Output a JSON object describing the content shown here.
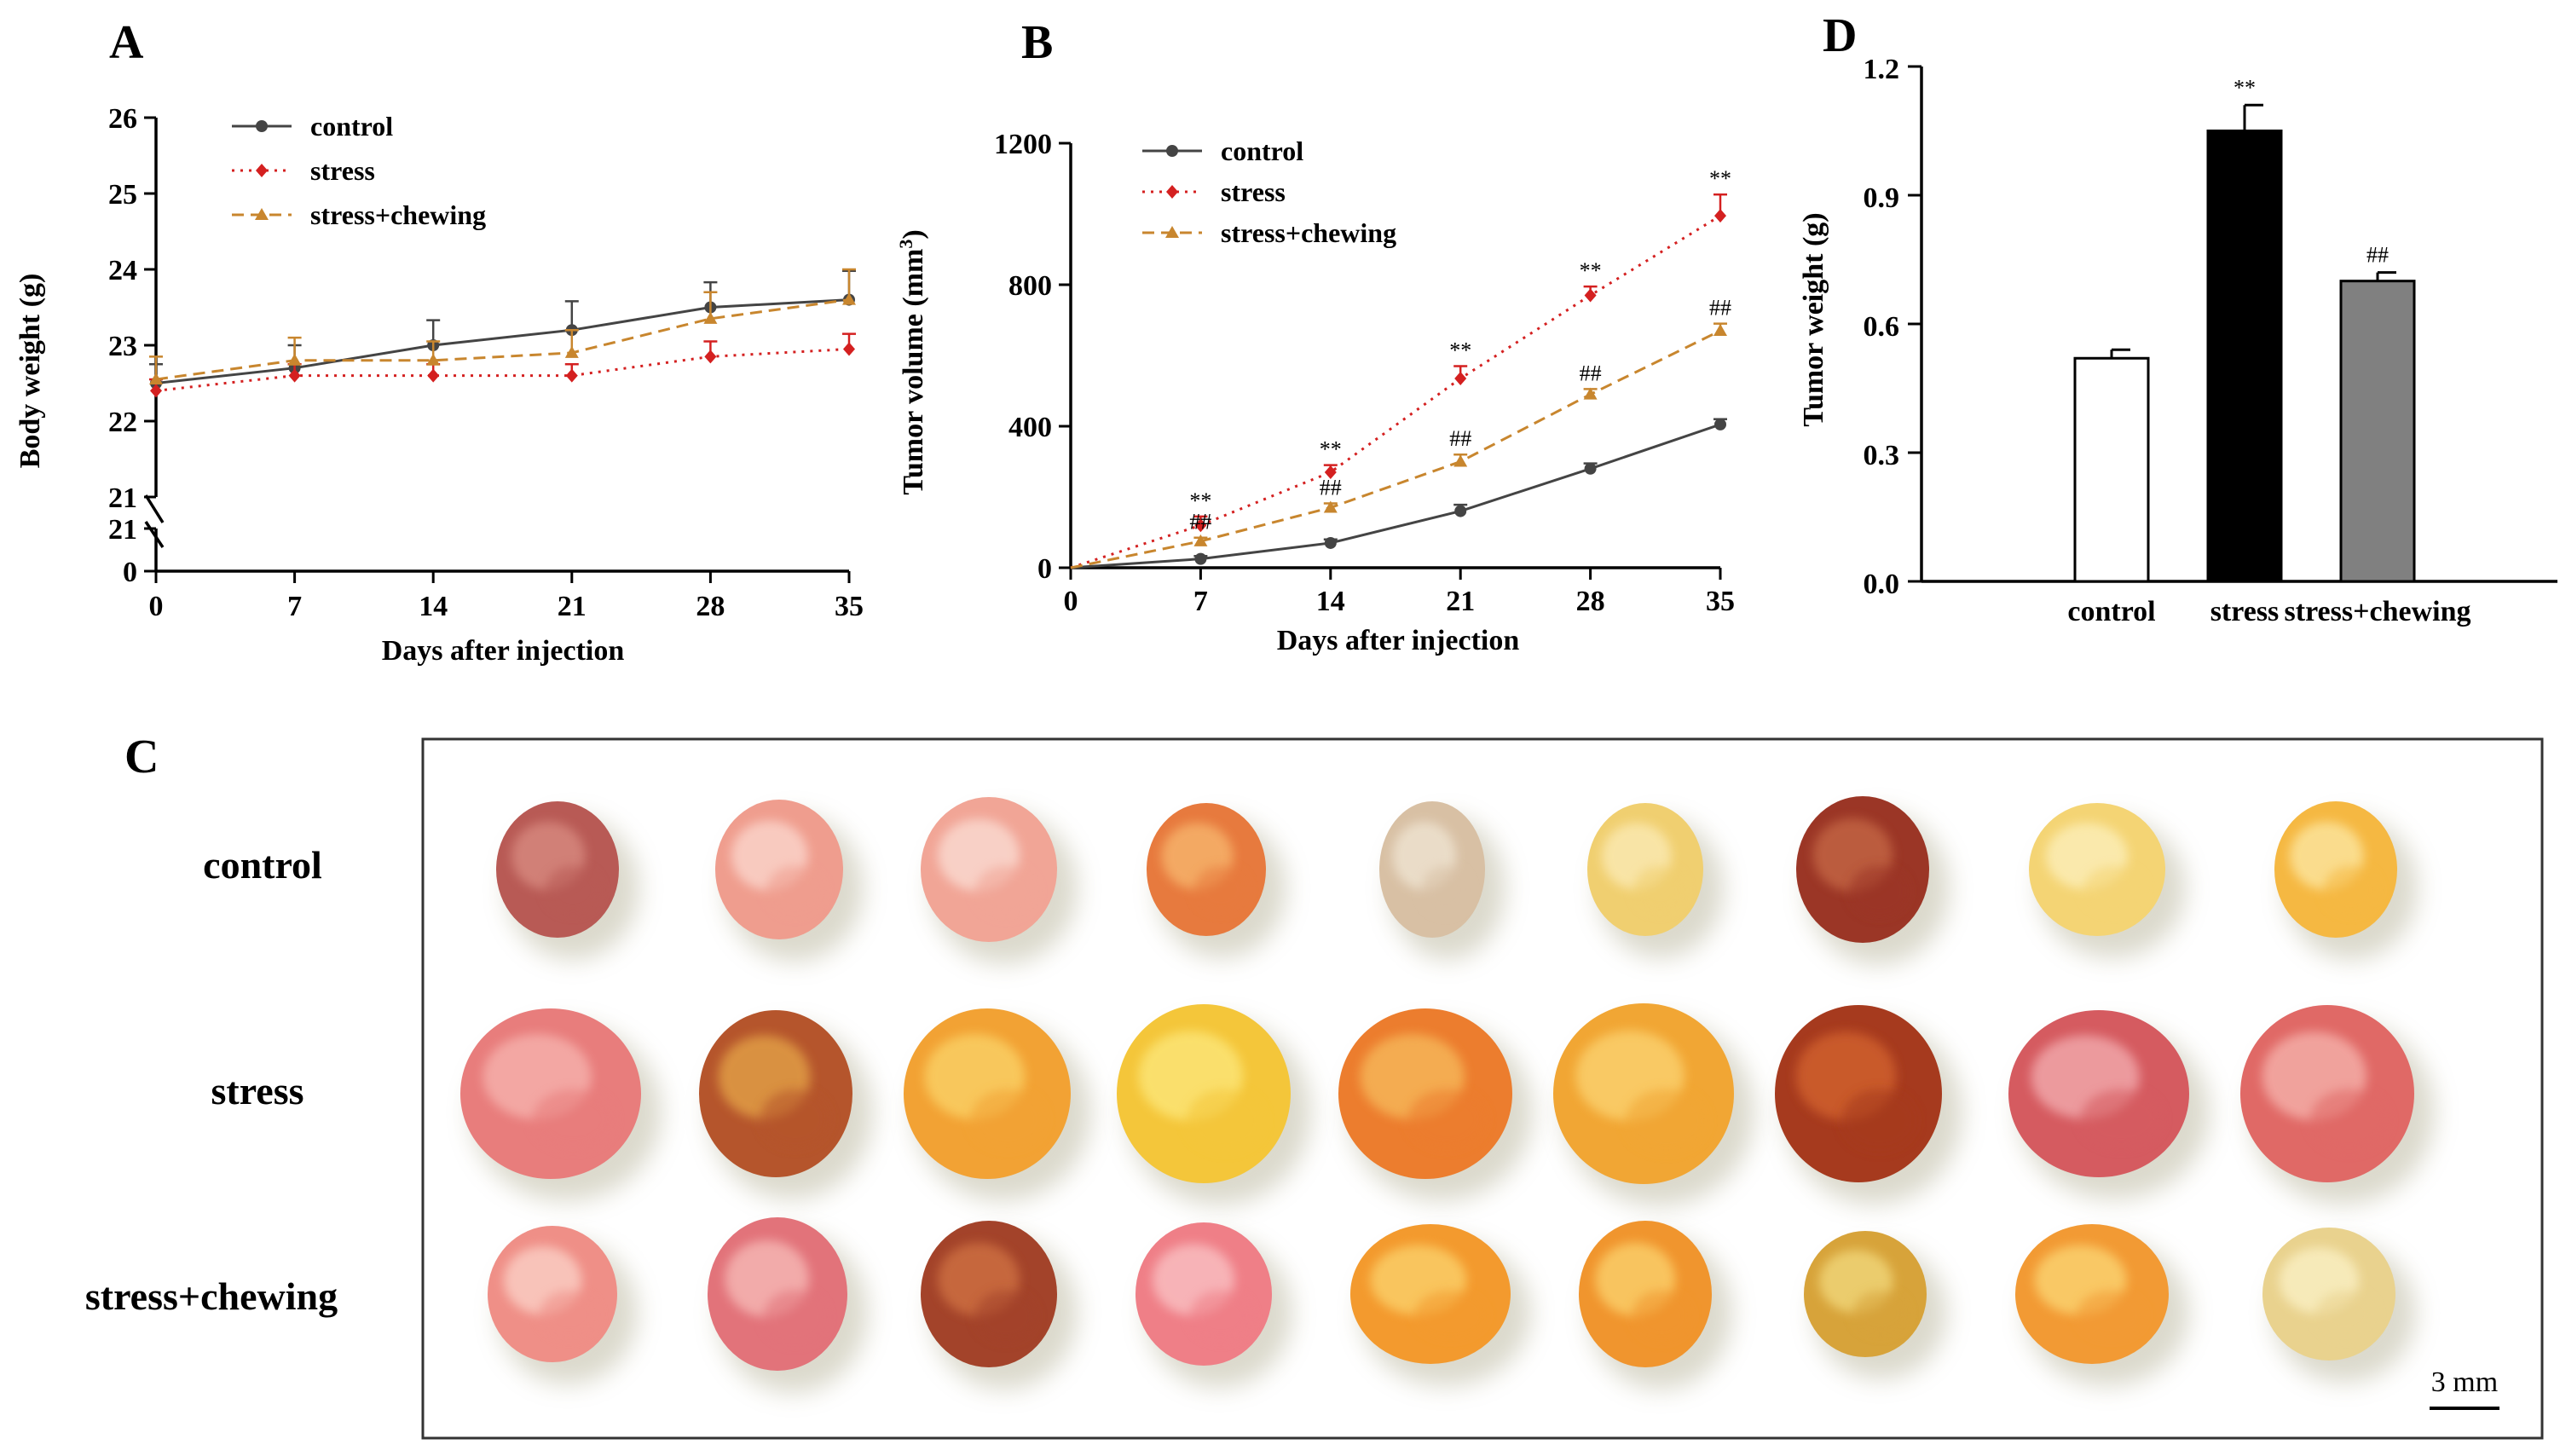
{
  "panels": {
    "A": "A",
    "B": "B",
    "C": "C",
    "D": "D"
  },
  "colors": {
    "control": "#444444",
    "stress": "#d42020",
    "stress_chewing": "#c8862e",
    "bar_control": "#ffffff",
    "bar_stress": "#000000",
    "bar_stress_chewing": "#808080"
  },
  "chart_data": [
    {
      "panel": "A",
      "type": "line",
      "title": "",
      "xlabel": "Days after injection",
      "ylabel": "Body weight (g)",
      "x": [
        0,
        7,
        14,
        21,
        28,
        35
      ],
      "xticks": [
        "0",
        "7",
        "14",
        "21",
        "28",
        "35"
      ],
      "yticks": [
        "21",
        "22",
        "23",
        "24",
        "25",
        "26"
      ],
      "ybreak_ticks": [
        "21",
        "0"
      ],
      "ylim": [
        21,
        26
      ],
      "broken_axis": true,
      "legend_position": "top-left",
      "series": [
        {
          "name": "control",
          "values": [
            22.5,
            22.7,
            23.0,
            23.2,
            23.5,
            23.6
          ],
          "errors": [
            0.25,
            0.3,
            0.33,
            0.38,
            0.33,
            0.38
          ]
        },
        {
          "name": "stress",
          "values": [
            22.4,
            22.6,
            22.6,
            22.6,
            22.85,
            22.95
          ],
          "errors": [
            0.15,
            0.15,
            0.15,
            0.15,
            0.2,
            0.2
          ]
        },
        {
          "name": "stress+chewing",
          "values": [
            22.55,
            22.8,
            22.8,
            22.9,
            23.35,
            23.6
          ],
          "errors": [
            0.3,
            0.3,
            0.25,
            0.3,
            0.35,
            0.4
          ]
        }
      ]
    },
    {
      "panel": "B",
      "type": "line",
      "title": "",
      "xlabel": "Days after injection",
      "ylabel": "Tumor volume (mm3)",
      "ylabel_main": "Tumor volume (mm",
      "ylabel_sup": "3",
      "ylabel_end": ")",
      "x": [
        0,
        7,
        14,
        21,
        28,
        35
      ],
      "xticks": [
        "0",
        "7",
        "14",
        "21",
        "28",
        "35"
      ],
      "yticks": [
        "0",
        "400",
        "800",
        "1200"
      ],
      "ylim": [
        0,
        1200
      ],
      "legend_position": "top-left",
      "series": [
        {
          "name": "control",
          "values": [
            0,
            25,
            70,
            160,
            280,
            405
          ],
          "errors": [
            0,
            8,
            10,
            18,
            15,
            15
          ]
        },
        {
          "name": "stress",
          "values": [
            0,
            120,
            270,
            535,
            770,
            995
          ],
          "errors": [
            0,
            25,
            20,
            35,
            25,
            60
          ]
        },
        {
          "name": "stress+chewing",
          "values": [
            0,
            75,
            170,
            300,
            490,
            670
          ],
          "errors": [
            0,
            10,
            12,
            20,
            15,
            20
          ]
        }
      ],
      "annotations": {
        "stress": [
          "",
          "**",
          "**",
          "**",
          "**",
          "**"
        ],
        "stress+chewing": [
          "",
          "##",
          "##",
          "##",
          "##",
          "##"
        ]
      }
    },
    {
      "panel": "D",
      "type": "bar",
      "title": "",
      "xlabel": "",
      "ylabel": "Tumor weight (g)",
      "categories": [
        "control",
        "stress",
        "stress+chewing"
      ],
      "values": [
        0.52,
        1.05,
        0.7
      ],
      "errors": [
        0.02,
        0.06,
        0.02
      ],
      "annotations": [
        "",
        "**",
        "##"
      ],
      "yticks": [
        "0.0",
        "0.3",
        "0.6",
        "0.9",
        "1.2"
      ],
      "ylim": [
        0,
        1.2
      ]
    }
  ],
  "photo_panel": {
    "rows": [
      "control",
      "stress",
      "stress+chewing"
    ],
    "scale_bar": "3 mm"
  }
}
